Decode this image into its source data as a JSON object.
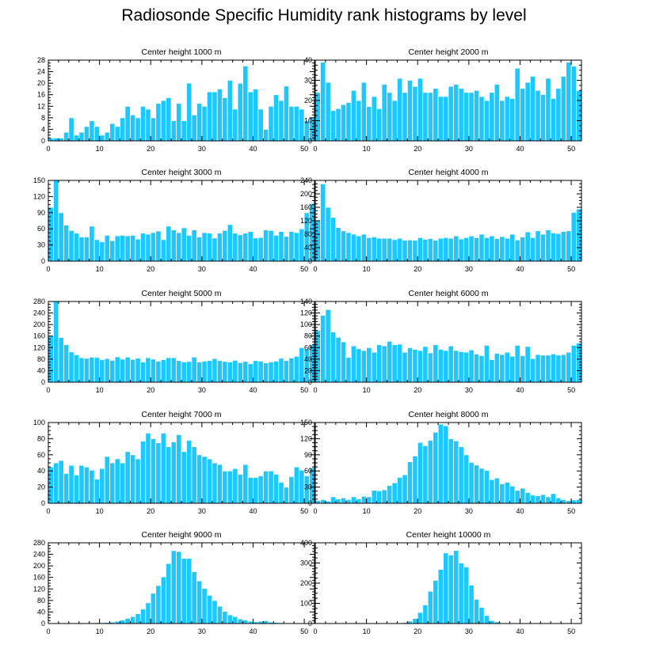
{
  "title": "Radiosonde Specific Humidity rank histograms by level",
  "colors": {
    "bar": "#1ec8ff",
    "bar_edge": "#ffffff",
    "axis": "#000000"
  },
  "chart_data": [
    {
      "type": "bar",
      "title": "Center height 1000 m",
      "xlim": [
        0,
        52
      ],
      "ylim": [
        0,
        28
      ],
      "xticks": [
        0,
        10,
        20,
        30,
        40,
        50
      ],
      "yticks": [
        0,
        4,
        8,
        12,
        16,
        20,
        24,
        28
      ],
      "categories": [
        0,
        1,
        2,
        3,
        4,
        5,
        6,
        7,
        8,
        9,
        10,
        11,
        12,
        13,
        14,
        15,
        16,
        17,
        18,
        19,
        20,
        21,
        22,
        23,
        24,
        25,
        26,
        27,
        28,
        29,
        30,
        31,
        32,
        33,
        34,
        35,
        36,
        37,
        38,
        39,
        40,
        41,
        42,
        43,
        44,
        45,
        46,
        47,
        48,
        49,
        50,
        51
      ],
      "values": [
        1,
        1,
        1,
        3,
        8,
        2,
        3,
        5,
        7,
        5,
        2,
        3,
        6,
        5,
        8,
        12,
        9,
        8,
        12,
        11,
        8,
        13,
        14,
        15,
        7,
        13,
        7,
        20,
        9,
        13,
        12,
        17,
        17,
        18,
        15,
        21,
        11,
        20,
        26,
        17,
        18,
        11,
        4,
        12,
        16,
        14,
        19,
        12,
        12,
        11,
        7,
        8
      ]
    },
    {
      "type": "bar",
      "title": "Center height 2000 m",
      "xlim": [
        0,
        52
      ],
      "ylim": [
        0,
        40
      ],
      "xticks": [
        0,
        10,
        20,
        30,
        40,
        50
      ],
      "yticks": [
        0,
        10,
        20,
        30,
        40
      ],
      "categories": [
        0,
        1,
        2,
        3,
        4,
        5,
        6,
        7,
        8,
        9,
        10,
        11,
        12,
        13,
        14,
        15,
        16,
        17,
        18,
        19,
        20,
        21,
        22,
        23,
        24,
        25,
        26,
        27,
        28,
        29,
        30,
        31,
        32,
        33,
        34,
        35,
        36,
        37,
        38,
        39,
        40,
        41,
        42,
        43,
        44,
        45,
        46,
        47,
        48,
        49,
        50,
        51
      ],
      "values": [
        24,
        39,
        29,
        15,
        16,
        18,
        19,
        25,
        20,
        29,
        17,
        22,
        16,
        28,
        24,
        20,
        31,
        24,
        30,
        27,
        31,
        24,
        24,
        26,
        22,
        22,
        27,
        28,
        26,
        24,
        24,
        25,
        22,
        20,
        24,
        28,
        20,
        22,
        21,
        36,
        26,
        29,
        32,
        25,
        23,
        31,
        21,
        26,
        32,
        39,
        37,
        25
      ]
    },
    {
      "type": "bar",
      "title": "Center height 3000 m",
      "xlim": [
        0,
        52
      ],
      "ylim": [
        0,
        150
      ],
      "xticks": [
        0,
        10,
        20,
        30,
        40,
        50
      ],
      "yticks": [
        0,
        30,
        60,
        90,
        120,
        150
      ],
      "categories": [
        0,
        1,
        2,
        3,
        4,
        5,
        6,
        7,
        8,
        9,
        10,
        11,
        12,
        13,
        14,
        15,
        16,
        17,
        18,
        19,
        20,
        21,
        22,
        23,
        24,
        25,
        26,
        27,
        28,
        29,
        30,
        31,
        32,
        33,
        34,
        35,
        36,
        37,
        38,
        39,
        40,
        41,
        42,
        43,
        44,
        45,
        46,
        47,
        48,
        49,
        50,
        51
      ],
      "values": [
        100,
        150,
        90,
        67,
        57,
        52,
        45,
        45,
        65,
        40,
        36,
        48,
        38,
        47,
        48,
        47,
        48,
        41,
        52,
        50,
        53,
        56,
        40,
        65,
        58,
        53,
        62,
        48,
        58,
        45,
        53,
        52,
        43,
        52,
        57,
        68,
        52,
        49,
        52,
        55,
        43,
        44,
        58,
        57,
        48,
        55,
        46,
        55,
        53,
        60,
        90,
        107
      ]
    },
    {
      "type": "bar",
      "title": "Center height 4000 m",
      "xlim": [
        0,
        52
      ],
      "ylim": [
        0,
        240
      ],
      "xticks": [
        0,
        10,
        20,
        30,
        40,
        50
      ],
      "yticks": [
        0,
        40,
        80,
        120,
        160,
        200,
        240
      ],
      "categories": [
        0,
        1,
        2,
        3,
        4,
        5,
        6,
        7,
        8,
        9,
        10,
        11,
        12,
        13,
        14,
        15,
        16,
        17,
        18,
        19,
        20,
        21,
        22,
        23,
        24,
        25,
        26,
        27,
        28,
        29,
        30,
        31,
        32,
        33,
        34,
        35,
        36,
        37,
        38,
        39,
        40,
        41,
        42,
        43,
        44,
        45,
        46,
        47,
        48,
        49,
        50,
        51
      ],
      "values": [
        120,
        230,
        160,
        130,
        100,
        90,
        85,
        80,
        75,
        80,
        70,
        72,
        68,
        68,
        68,
        64,
        68,
        62,
        63,
        62,
        70,
        65,
        67,
        62,
        68,
        70,
        68,
        75,
        66,
        70,
        75,
        70,
        80,
        70,
        75,
        67,
        73,
        68,
        80,
        63,
        72,
        87,
        70,
        90,
        80,
        93,
        84,
        82,
        88,
        90,
        145,
        155
      ]
    },
    {
      "type": "bar",
      "title": "Center height 5000 m",
      "xlim": [
        0,
        52
      ],
      "ylim": [
        0,
        280
      ],
      "xticks": [
        0,
        10,
        20,
        30,
        40,
        50
      ],
      "yticks": [
        0,
        40,
        80,
        120,
        160,
        200,
        240,
        280
      ],
      "categories": [
        0,
        1,
        2,
        3,
        4,
        5,
        6,
        7,
        8,
        9,
        10,
        11,
        12,
        13,
        14,
        15,
        16,
        17,
        18,
        19,
        20,
        21,
        22,
        23,
        24,
        25,
        26,
        27,
        28,
        29,
        30,
        31,
        32,
        33,
        34,
        35,
        36,
        37,
        38,
        39,
        40,
        41,
        42,
        43,
        44,
        45,
        46,
        47,
        48,
        49,
        50,
        51
      ],
      "values": [
        160,
        280,
        155,
        130,
        105,
        95,
        85,
        83,
        87,
        86,
        78,
        82,
        76,
        88,
        80,
        87,
        79,
        83,
        70,
        85,
        80,
        73,
        78,
        85,
        85,
        75,
        70,
        72,
        87,
        70,
        73,
        75,
        82,
        75,
        72,
        70,
        76,
        68,
        72,
        64,
        75,
        73,
        67,
        70,
        73,
        83,
        75,
        84,
        90,
        120,
        115,
        130
      ]
    },
    {
      "type": "bar",
      "title": "Center height 6000 m",
      "xlim": [
        0,
        52
      ],
      "ylim": [
        0,
        140
      ],
      "xticks": [
        0,
        10,
        20,
        30,
        40,
        50
      ],
      "yticks": [
        0,
        20,
        40,
        60,
        80,
        100,
        120,
        140
      ],
      "categories": [
        0,
        1,
        2,
        3,
        4,
        5,
        6,
        7,
        8,
        9,
        10,
        11,
        12,
        13,
        14,
        15,
        16,
        17,
        18,
        19,
        20,
        21,
        22,
        23,
        24,
        25,
        26,
        27,
        28,
        29,
        30,
        31,
        32,
        33,
        34,
        35,
        36,
        37,
        38,
        39,
        40,
        41,
        42,
        43,
        44,
        45,
        46,
        47,
        48,
        49,
        50,
        51
      ],
      "values": [
        90,
        116,
        126,
        87,
        78,
        70,
        43,
        63,
        58,
        55,
        60,
        52,
        65,
        63,
        71,
        65,
        66,
        52,
        60,
        57,
        55,
        62,
        51,
        65,
        57,
        55,
        63,
        55,
        53,
        52,
        56,
        49,
        46,
        64,
        39,
        50,
        48,
        52,
        45,
        64,
        46,
        62,
        41,
        48,
        47,
        47,
        49,
        47,
        48,
        52,
        64,
        68
      ]
    },
    {
      "type": "bar",
      "title": "Center height 7000 m",
      "xlim": [
        0,
        52
      ],
      "ylim": [
        0,
        100
      ],
      "xticks": [
        0,
        10,
        20,
        30,
        40,
        50
      ],
      "yticks": [
        0,
        20,
        40,
        60,
        80,
        100
      ],
      "categories": [
        0,
        1,
        2,
        3,
        4,
        5,
        6,
        7,
        8,
        9,
        10,
        11,
        12,
        13,
        14,
        15,
        16,
        17,
        18,
        19,
        20,
        21,
        22,
        23,
        24,
        25,
        26,
        27,
        28,
        29,
        30,
        31,
        32,
        33,
        34,
        35,
        36,
        37,
        38,
        39,
        40,
        41,
        42,
        43,
        44,
        45,
        46,
        47,
        48,
        49,
        50,
        51
      ],
      "values": [
        45,
        50,
        53,
        37,
        47,
        35,
        47,
        45,
        41,
        30,
        43,
        58,
        50,
        55,
        50,
        64,
        60,
        55,
        77,
        87,
        80,
        75,
        87,
        70,
        76,
        85,
        64,
        78,
        70,
        60,
        58,
        55,
        50,
        48,
        40,
        40,
        43,
        36,
        48,
        32,
        32,
        34,
        40,
        40,
        36,
        26,
        20,
        33,
        45,
        41,
        34,
        44
      ]
    },
    {
      "type": "bar",
      "title": "Center height 8000 m",
      "xlim": [
        0,
        52
      ],
      "ylim": [
        0,
        150
      ],
      "xticks": [
        0,
        10,
        20,
        30,
        40,
        50
      ],
      "yticks": [
        0,
        30,
        60,
        90,
        120,
        150
      ],
      "categories": [
        0,
        1,
        2,
        3,
        4,
        5,
        6,
        7,
        8,
        9,
        10,
        11,
        12,
        13,
        14,
        15,
        16,
        17,
        18,
        19,
        20,
        21,
        22,
        23,
        24,
        25,
        26,
        27,
        28,
        29,
        30,
        31,
        32,
        33,
        34,
        35,
        36,
        37,
        38,
        39,
        40,
        41,
        42,
        43,
        44,
        45,
        46,
        47,
        48,
        49,
        50,
        51
      ],
      "values": [
        5,
        7,
        4,
        12,
        8,
        10,
        7,
        12,
        8,
        13,
        12,
        24,
        23,
        25,
        33,
        38,
        48,
        53,
        77,
        88,
        113,
        107,
        117,
        132,
        147,
        144,
        120,
        116,
        105,
        90,
        76,
        71,
        65,
        61,
        44,
        47,
        36,
        39,
        32,
        24,
        28,
        20,
        15,
        14,
        16,
        12,
        18,
        10,
        7,
        5,
        6,
        7
      ]
    },
    {
      "type": "bar",
      "title": "Center height 9000 m",
      "xlim": [
        0,
        52
      ],
      "ylim": [
        0,
        280
      ],
      "xticks": [
        0,
        10,
        20,
        30,
        40,
        50
      ],
      "yticks": [
        0,
        40,
        80,
        120,
        160,
        200,
        240,
        280
      ],
      "categories": [
        0,
        1,
        2,
        3,
        4,
        5,
        6,
        7,
        8,
        9,
        10,
        11,
        12,
        13,
        14,
        15,
        16,
        17,
        18,
        19,
        20,
        21,
        22,
        23,
        24,
        25,
        26,
        27,
        28,
        29,
        30,
        31,
        32,
        33,
        34,
        35,
        36,
        37,
        38,
        39,
        40,
        41,
        42,
        43,
        44,
        45,
        46,
        47,
        48,
        49,
        50,
        51
      ],
      "values": [
        1,
        1,
        1,
        1,
        1,
        1,
        2,
        2,
        2,
        3,
        3,
        4,
        5,
        8,
        12,
        18,
        24,
        34,
        50,
        72,
        105,
        132,
        162,
        208,
        253,
        250,
        226,
        226,
        180,
        148,
        122,
        98,
        80,
        60,
        42,
        30,
        24,
        16,
        12,
        8,
        6,
        8,
        10,
        5,
        4,
        3,
        2,
        2,
        1,
        1,
        1,
        1
      ]
    },
    {
      "type": "bar",
      "title": "Center height 10000 m",
      "xlim": [
        0,
        52
      ],
      "ylim": [
        0,
        400
      ],
      "xticks": [
        0,
        10,
        20,
        30,
        40,
        50
      ],
      "yticks": [
        0,
        100,
        200,
        300,
        400
      ],
      "categories": [
        0,
        1,
        2,
        3,
        4,
        5,
        6,
        7,
        8,
        9,
        10,
        11,
        12,
        13,
        14,
        15,
        16,
        17,
        18,
        19,
        20,
        21,
        22,
        23,
        24,
        25,
        26,
        27,
        28,
        29,
        30,
        31,
        32,
        33,
        34,
        35,
        36,
        37,
        38,
        39,
        40,
        41,
        42,
        43,
        44,
        45,
        46,
        47,
        48,
        49,
        50,
        51
      ],
      "values": [
        0,
        0,
        0,
        0,
        0,
        0,
        0,
        0,
        0,
        0,
        0,
        0,
        0,
        0,
        0,
        0,
        2,
        5,
        12,
        25,
        55,
        92,
        160,
        214,
        268,
        350,
        340,
        362,
        300,
        280,
        190,
        120,
        80,
        40,
        15,
        8,
        3,
        2,
        1,
        0,
        0,
        0,
        0,
        0,
        0,
        0,
        0,
        0,
        0,
        0,
        0,
        0
      ]
    }
  ]
}
